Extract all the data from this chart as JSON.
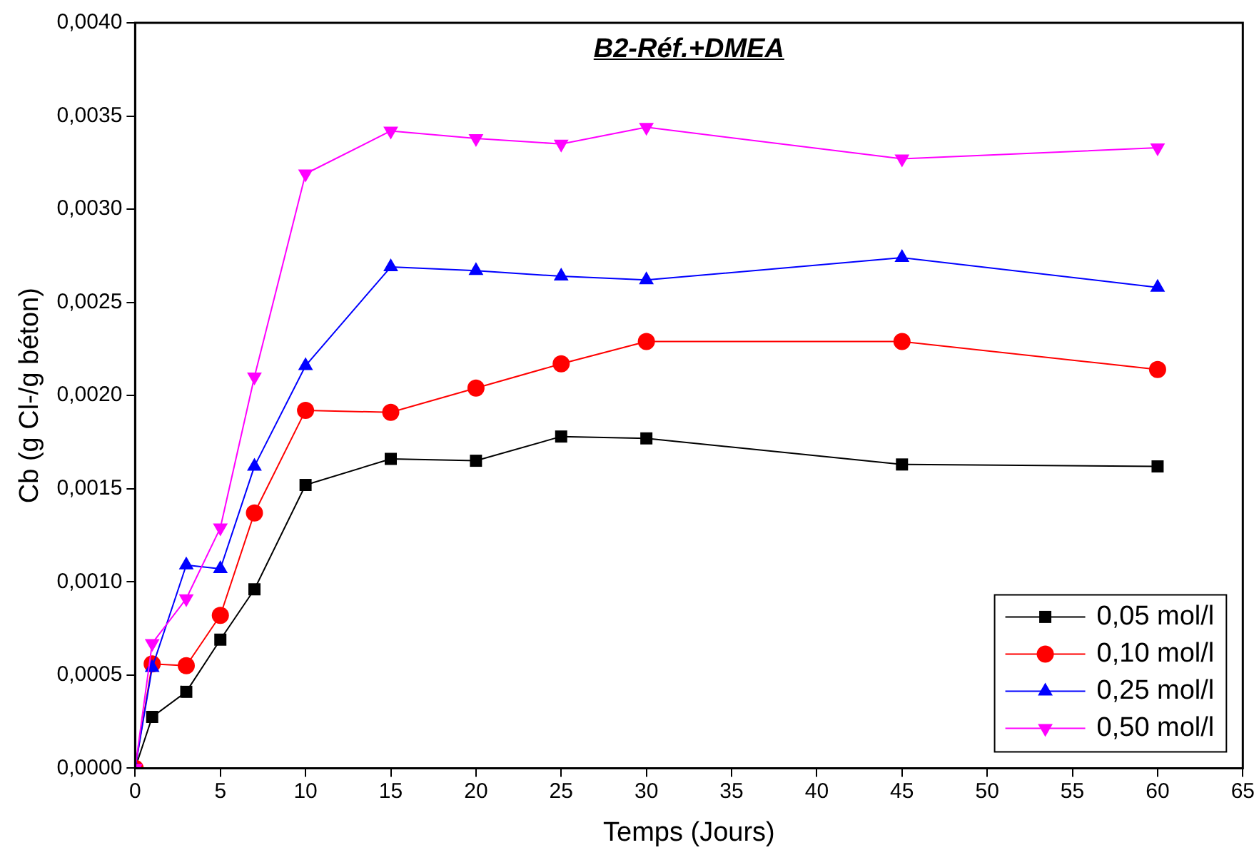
{
  "chart_data": {
    "type": "line",
    "title": "B2-Réf.+DMEA",
    "xlabel": "Temps (Jours)",
    "ylabel": "Cb (g Cl-/g béton)",
    "x": [
      0,
      1,
      3,
      5,
      7,
      10,
      15,
      20,
      25,
      30,
      45,
      60
    ],
    "series": [
      {
        "name": "0,05 mol/l",
        "color": "#000000",
        "marker": "square",
        "values": [
          0,
          0.000275,
          0.00041,
          0.00069,
          0.00096,
          0.00152,
          0.00166,
          0.00165,
          0.00178,
          0.00177,
          0.00163,
          0.00162
        ]
      },
      {
        "name": "0,10 mol/l",
        "color": "#ff0000",
        "marker": "circle",
        "values": [
          0,
          0.00056,
          0.00055,
          0.00082,
          0.00137,
          0.00192,
          0.00191,
          0.00204,
          0.00217,
          0.00229,
          0.00229,
          0.00214
        ]
      },
      {
        "name": "0,25 mol/l",
        "color": "#0000ff",
        "marker": "triangle",
        "values": [
          0,
          0.00054,
          0.00109,
          0.00107,
          0.00162,
          0.00216,
          0.00269,
          0.00267,
          0.00264,
          0.00262,
          0.00274,
          0.00258
        ]
      },
      {
        "name": "0,50 mol/l",
        "color": "#ff00ff",
        "marker": "triangle-down",
        "values": [
          0,
          0.00067,
          0.00091,
          0.00129,
          0.0021,
          0.00319,
          0.00342,
          0.00338,
          0.00335,
          0.00344,
          0.00327,
          0.00333
        ]
      }
    ],
    "xlim": [
      0,
      65
    ],
    "xticks": [
      0,
      5,
      10,
      15,
      20,
      25,
      30,
      35,
      40,
      45,
      50,
      55,
      60,
      65
    ],
    "ylim": [
      0,
      0.004
    ],
    "yticks": [
      {
        "value": 0,
        "label": "0,0000"
      },
      {
        "value": 0.0005,
        "label": "0,0005"
      },
      {
        "value": 0.001,
        "label": "0,0010"
      },
      {
        "value": 0.0015,
        "label": "0,0015"
      },
      {
        "value": 0.002,
        "label": "0,0020"
      },
      {
        "value": 0.0025,
        "label": "0,0025"
      },
      {
        "value": 0.003,
        "label": "0,0030"
      },
      {
        "value": 0.0035,
        "label": "0,0035"
      },
      {
        "value": 0.004,
        "label": "0,0040"
      }
    ],
    "grid": false,
    "legend": "bottom right",
    "line_style": "solid"
  }
}
